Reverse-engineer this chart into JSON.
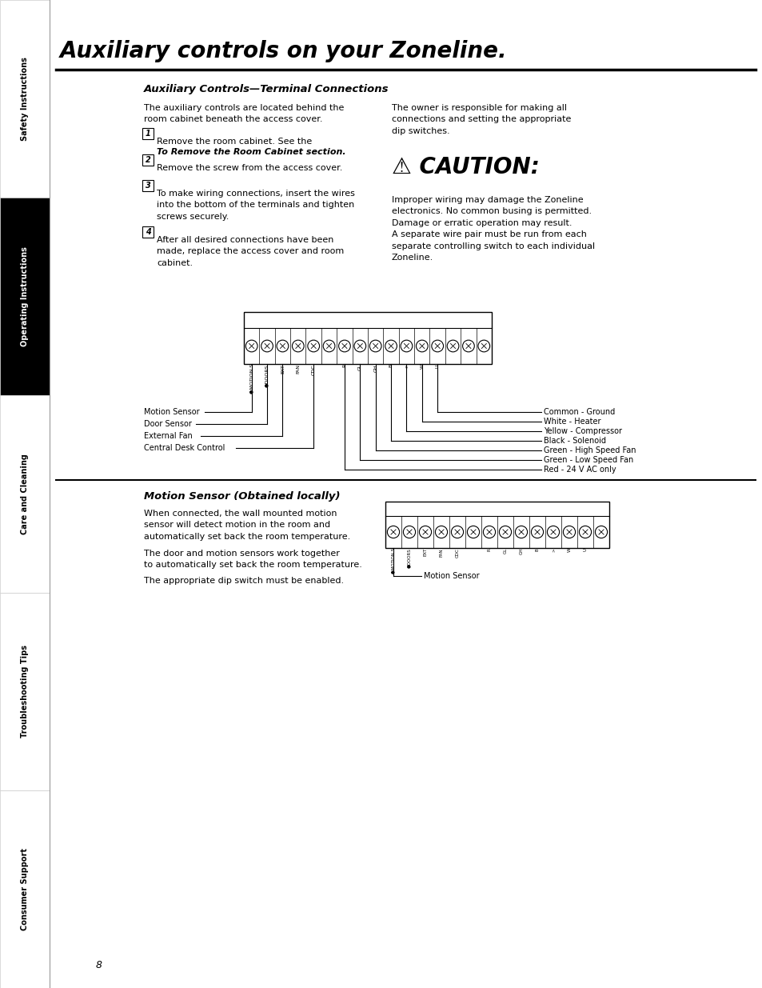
{
  "page_bg": "#ffffff",
  "sidebar_sections": [
    {
      "label": "Safety Instructions",
      "active": false
    },
    {
      "label": "Operating Instructions",
      "active": true
    },
    {
      "label": "Care and Cleaning",
      "active": false
    },
    {
      "label": "Troubleshooting Tips",
      "active": false
    },
    {
      "label": "Consumer Support",
      "active": false
    }
  ],
  "title": "Auxiliary controls on your Zoneline.",
  "section_heading": "Auxiliary Controls—Terminal Connections",
  "left_para1": "The auxiliary controls are located behind the\nroom cabinet beneath the access cover.",
  "steps": [
    "Remove the room cabinet. See the\nTo Remove the Room Cabinet section.",
    "Remove the screw from the access cover.",
    "To make wiring connections, insert the wires\ninto the bottom of the terminals and tighten\nscrews securely.",
    "After all desired connections have been\nmade, replace the access cover and room\ncabinet."
  ],
  "steps_italic_parts": [
    "To Remove the Room Cabinet",
    "",
    "",
    ""
  ],
  "right_para1": "The owner is responsible for making all\nconnections and setting the appropriate\ndip switches.",
  "caution_title": "⚠ CAUTION:",
  "caution_text": "Improper wiring may damage the Zoneline\nelectronics. No common busing is permitted.\nDamage or erratic operation may result.\nA separate wire pair must be run from each\nseparate controlling switch to each individual\nZoneline.",
  "diagram_labels_left": [
    "Motion Sensor",
    "Door Sensor",
    "External Fan",
    "Central Desk Control"
  ],
  "diagram_labels_right": [
    "Common - Ground",
    "White - Heater",
    "Yellow - Compressor",
    "Black - Solenoid",
    "Green - High Speed Fan",
    "Green - Low Speed Fan",
    "Red - 24 V AC only"
  ],
  "motion_heading": "Motion Sensor (Obtained locally)",
  "motion_para1": "When connected, the wall mounted motion\nsensor will detect motion in the room and\nautomatically set back the room temperature.",
  "motion_para2": "The door and motion sensors work together\nto automatically set back the room temperature.",
  "motion_para3": "The appropriate dip switch must be enabled.",
  "motion_diagram_label": "Motion Sensor",
  "page_number": "8"
}
